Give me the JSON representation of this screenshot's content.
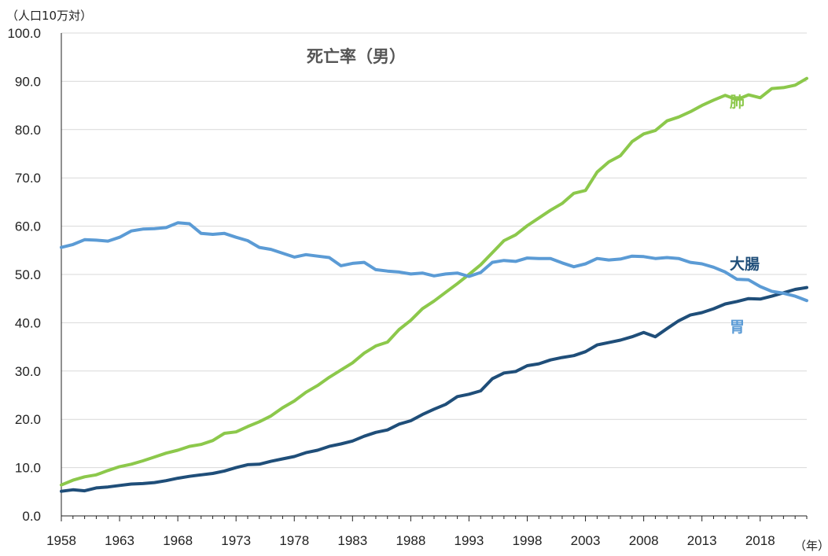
{
  "chart_data": {
    "type": "line",
    "title": "死亡率（男）",
    "y_unit_label": "（人口10万対）",
    "x_unit_label": "（年）",
    "ylim": [
      0,
      100
    ],
    "y_ticks": [
      "0.0",
      "10.0",
      "20.0",
      "30.0",
      "40.0",
      "50.0",
      "60.0",
      "70.0",
      "80.0",
      "90.0",
      "100.0"
    ],
    "xlim": [
      1958,
      2022
    ],
    "x_ticks": [
      "1958",
      "1963",
      "1968",
      "1973",
      "1978",
      "1983",
      "1988",
      "1993",
      "1998",
      "2003",
      "2008",
      "2013",
      "2018"
    ],
    "grid": "horizontal",
    "x": [
      1958,
      1959,
      1960,
      1961,
      1962,
      1963,
      1964,
      1965,
      1966,
      1967,
      1968,
      1969,
      1970,
      1971,
      1972,
      1973,
      1974,
      1975,
      1976,
      1977,
      1978,
      1979,
      1980,
      1981,
      1982,
      1983,
      1984,
      1985,
      1986,
      1987,
      1988,
      1989,
      1990,
      1991,
      1992,
      1993,
      1994,
      1995,
      1996,
      1997,
      1998,
      1999,
      2000,
      2001,
      2002,
      2003,
      2004,
      2005,
      2006,
      2007,
      2008,
      2009,
      2010,
      2011,
      2012,
      2013,
      2014,
      2015,
      2016,
      2017,
      2018,
      2019,
      2020,
      2021,
      2022
    ],
    "series": [
      {
        "name": "肺",
        "color": "#8cc84b",
        "values": [
          6.4,
          7.4,
          8.1,
          8.5,
          9.4,
          10.2,
          10.7,
          11.4,
          12.2,
          13.0,
          13.6,
          14.4,
          14.8,
          15.6,
          17.1,
          17.4,
          18.5,
          19.5,
          20.7,
          22.4,
          23.8,
          25.6,
          27.0,
          28.7,
          30.2,
          31.7,
          33.7,
          35.2,
          36.0,
          38.6,
          40.5,
          42.9,
          44.5,
          46.3,
          48.1,
          50.0,
          52.0,
          54.5,
          57.0,
          58.2,
          60.1,
          61.7,
          63.3,
          64.7,
          66.8,
          67.4,
          71.2,
          73.3,
          74.6,
          77.5,
          79.1,
          79.8,
          81.8,
          82.6,
          83.7,
          85.0,
          86.1,
          87.1,
          86.2,
          87.2,
          86.6,
          88.5,
          88.7,
          89.2,
          90.6
        ]
      },
      {
        "name": "大腸",
        "color": "#1f4e79",
        "values": [
          5.1,
          5.4,
          5.2,
          5.8,
          6.0,
          6.3,
          6.6,
          6.7,
          6.9,
          7.3,
          7.8,
          8.2,
          8.5,
          8.8,
          9.3,
          10.0,
          10.6,
          10.7,
          11.3,
          11.8,
          12.3,
          13.1,
          13.6,
          14.4,
          14.9,
          15.5,
          16.5,
          17.3,
          17.8,
          19.0,
          19.7,
          21.0,
          22.1,
          23.1,
          24.7,
          25.2,
          25.9,
          28.4,
          29.6,
          29.9,
          31.1,
          31.5,
          32.3,
          32.8,
          33.2,
          34.0,
          35.4,
          35.9,
          36.4,
          37.1,
          38.0,
          37.1,
          38.8,
          40.4,
          41.6,
          42.1,
          42.9,
          43.9,
          44.4,
          45.0,
          44.9,
          45.5,
          46.2,
          46.9,
          47.3
        ]
      },
      {
        "name": "胃",
        "color": "#5b9bd5",
        "values": [
          55.6,
          56.2,
          57.2,
          57.1,
          56.9,
          57.7,
          59.0,
          59.4,
          59.5,
          59.7,
          60.7,
          60.5,
          58.5,
          58.3,
          58.5,
          57.7,
          57.0,
          55.6,
          55.2,
          54.4,
          53.6,
          54.1,
          53.8,
          53.5,
          51.8,
          52.3,
          52.5,
          51.0,
          50.7,
          50.5,
          50.1,
          50.3,
          49.7,
          50.1,
          50.3,
          49.6,
          50.4,
          52.5,
          52.9,
          52.7,
          53.4,
          53.3,
          53.3,
          52.4,
          51.6,
          52.2,
          53.3,
          53.0,
          53.2,
          53.8,
          53.7,
          53.3,
          53.5,
          53.3,
          52.5,
          52.2,
          51.5,
          50.5,
          49.0,
          48.9,
          47.5,
          46.5,
          46.1,
          45.5,
          44.6
        ]
      }
    ],
    "series_labels": [
      {
        "name": "肺",
        "color": "#8cc84b",
        "at": [
          2017,
          84.7
        ]
      },
      {
        "name": "大腸",
        "color": "#1f4e79",
        "at": [
          2017,
          51.1
        ]
      },
      {
        "name": "胃",
        "color": "#5b9bd5",
        "at": [
          2017,
          38.1
        ]
      }
    ]
  }
}
